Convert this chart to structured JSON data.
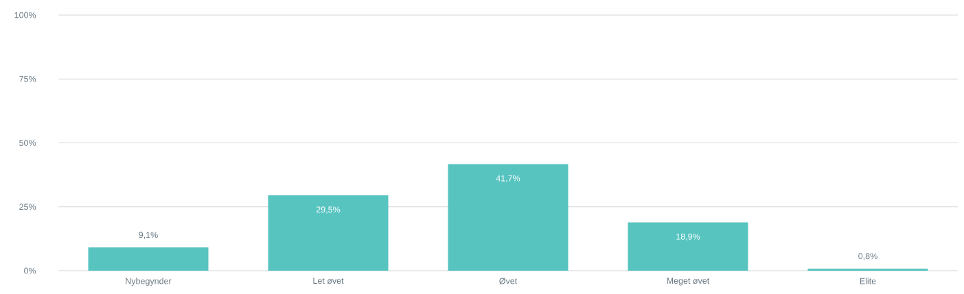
{
  "chart_data": {
    "type": "bar",
    "categories": [
      "Nybegynder",
      "Let øvet",
      "Øvet",
      "Meget øvet",
      "Elite"
    ],
    "values": [
      9.1,
      29.5,
      41.7,
      18.9,
      0.8
    ],
    "value_labels": [
      "9,1%",
      "29,5%",
      "41,7%",
      "18,9%",
      "0,8%"
    ],
    "color": "#57c4c0",
    "ylim": [
      0,
      100
    ],
    "yticks": [
      {
        "value": 0,
        "label": "0%"
      },
      {
        "value": 25,
        "label": "25%"
      },
      {
        "value": 50,
        "label": "50%"
      },
      {
        "value": 75,
        "label": "75%"
      },
      {
        "value": 100,
        "label": "100%"
      }
    ],
    "grid": "y"
  }
}
